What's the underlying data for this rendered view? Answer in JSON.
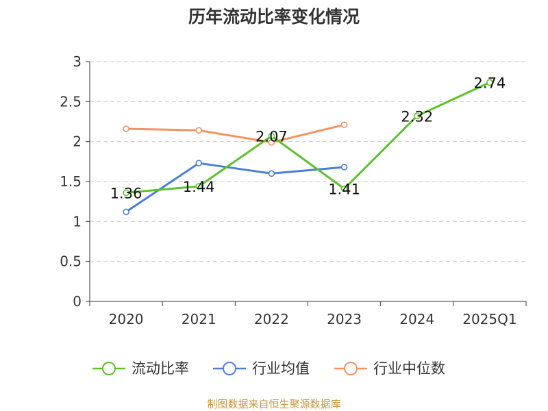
{
  "chart_data": {
    "type": "line",
    "title": "历年流动比率变化情况",
    "categories": [
      "2020",
      "2021",
      "2022",
      "2023",
      "2024",
      "2025Q1"
    ],
    "ylim": [
      0,
      3
    ],
    "yticks": [
      "0",
      "0.5",
      "1",
      "1.5",
      "2",
      "2.5",
      "3"
    ],
    "grid": true,
    "legend_position": "bottom",
    "series": [
      {
        "name": "流动比率",
        "color": "#5cc22a",
        "values": [
          1.36,
          1.44,
          2.07,
          1.41,
          2.32,
          2.74
        ],
        "labels": [
          "1.36",
          "1.44",
          "2.07",
          "1.41",
          "2.32",
          "2.74"
        ]
      },
      {
        "name": "行业均值",
        "color": "#4a7fd9",
        "values": [
          1.12,
          1.73,
          1.6,
          1.68,
          null,
          null
        ]
      },
      {
        "name": "行业中位数",
        "color": "#f5925e",
        "values": [
          2.16,
          2.14,
          1.99,
          2.21,
          null,
          null
        ]
      }
    ]
  },
  "source": {
    "text": "制图数据来自恒生聚源数据库",
    "color": "#c8963a"
  }
}
